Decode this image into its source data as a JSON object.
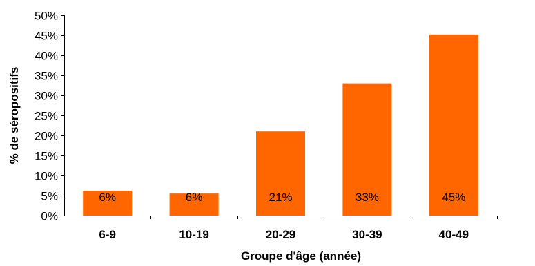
{
  "chart_data": {
    "type": "bar",
    "categories": [
      "6-9",
      "10-19",
      "20-29",
      "30-39",
      "40-49"
    ],
    "values": [
      6.2,
      5.5,
      21,
      33,
      45.2
    ],
    "data_labels": [
      "6%",
      "6%",
      "21%",
      "33%",
      "45%"
    ],
    "xlabel": "Groupe d'âge (année)",
    "ylabel": "% de séropositifs",
    "ylim": [
      0,
      50
    ],
    "yticks": [
      0,
      5,
      10,
      15,
      20,
      25,
      30,
      35,
      40,
      45,
      50
    ],
    "ytick_labels": [
      "0%",
      "5%",
      "10%",
      "15%",
      "20%",
      "25%",
      "30%",
      "35%",
      "40%",
      "45%",
      "50%"
    ],
    "grid": false,
    "legend": "none",
    "bar_color": "#FF6600"
  }
}
